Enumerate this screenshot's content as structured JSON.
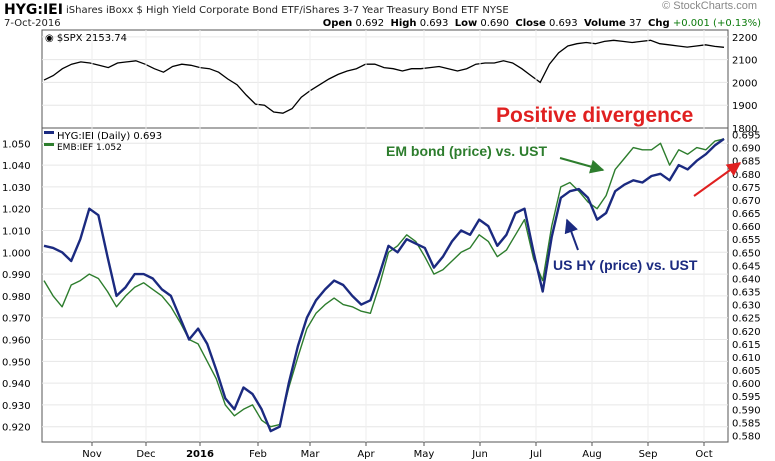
{
  "header": {
    "symbol": "HYG:IEI",
    "name": "iShares iBoxx $ High Yield Corporate Bond ETF/iShares 3-7 Year Treasury Bond ETF  NYSE",
    "date": "7-Oct-2016",
    "watermark": "© StockCharts.com",
    "ohlc": {
      "open_label": "Open",
      "open": "0.692",
      "high_label": "High",
      "high": "0.693",
      "low_label": "Low",
      "low": "0.690",
      "close_label": "Close",
      "close": "0.693",
      "volume_label": "Volume",
      "volume": "37",
      "chg_label": "Chg",
      "chg": "+0.001 (+0.13%)"
    }
  },
  "chart_data": [
    {
      "type": "line",
      "legend": "$SPX 2153.74",
      "series": [
        {
          "name": "$SPX",
          "last": 2153.74,
          "values": [
            2010,
            2030,
            2060,
            2080,
            2090,
            2085,
            2075,
            2065,
            2085,
            2090,
            2095,
            2080,
            2060,
            2045,
            2070,
            2080,
            2075,
            2065,
            2060,
            2045,
            2015,
            1990,
            1945,
            1905,
            1900,
            1870,
            1865,
            1885,
            1935,
            1965,
            1990,
            2015,
            2035,
            2050,
            2060,
            2080,
            2080,
            2065,
            2060,
            2050,
            2060,
            2060,
            2065,
            2070,
            2060,
            2050,
            2060,
            2080,
            2085,
            2085,
            2095,
            2085,
            2060,
            2030,
            2000,
            2080,
            2130,
            2160,
            2170,
            2175,
            2170,
            2180,
            2185,
            2180,
            2175,
            2180,
            2185,
            2170,
            2165,
            2160,
            2155,
            2160,
            2165,
            2158,
            2154
          ]
        }
      ],
      "y_ticks": [
        1800,
        1900,
        2000,
        2100,
        2200
      ],
      "ylim": [
        1800,
        2230
      ]
    },
    {
      "type": "line",
      "series": [
        {
          "name": "HYG:IEI (Daily)",
          "last": 0.693,
          "color": "#1b2a80",
          "values": [
            1.003,
            1.002,
            1.0,
            0.996,
            1.006,
            1.02,
            1.017,
            0.998,
            0.98,
            0.984,
            0.99,
            0.99,
            0.988,
            0.983,
            0.98,
            0.97,
            0.96,
            0.965,
            0.958,
            0.946,
            0.933,
            0.928,
            0.938,
            0.935,
            0.928,
            0.918,
            0.92,
            0.94,
            0.957,
            0.97,
            0.978,
            0.983,
            0.987,
            0.985,
            0.98,
            0.976,
            0.978,
            0.99,
            1.003,
            1.0,
            1.006,
            1.004,
            1.002,
            0.993,
            0.998,
            1.005,
            1.01,
            1.008,
            1.015,
            1.012,
            1.003,
            1.008,
            1.018,
            1.02,
            1.0,
            0.982,
            1.007,
            1.025,
            1.028,
            1.029,
            1.025,
            1.015,
            1.018,
            1.028,
            1.031,
            1.033,
            1.032,
            1.035,
            1.036,
            1.033,
            1.04,
            1.038,
            1.042,
            1.045,
            1.049,
            1.052
          ]
        },
        {
          "name": "EMB:IEF",
          "last": 1.052,
          "color": "#2d7d2d",
          "values": [
            0.987,
            0.98,
            0.975,
            0.985,
            0.987,
            0.99,
            0.988,
            0.982,
            0.975,
            0.98,
            0.984,
            0.986,
            0.983,
            0.98,
            0.975,
            0.968,
            0.96,
            0.958,
            0.95,
            0.942,
            0.93,
            0.925,
            0.928,
            0.93,
            0.923,
            0.92,
            0.921,
            0.938,
            0.952,
            0.965,
            0.972,
            0.976,
            0.979,
            0.976,
            0.975,
            0.973,
            0.972,
            0.985,
            1.0,
            1.003,
            1.008,
            1.005,
            0.998,
            0.99,
            0.992,
            0.996,
            1.0,
            1.002,
            1.008,
            1.005,
            0.998,
            1.001,
            1.008,
            1.015,
            0.997,
            0.987,
            1.012,
            1.03,
            1.032,
            1.028,
            1.023,
            1.02,
            1.026,
            1.038,
            1.043,
            1.048,
            1.047,
            1.047,
            1.05,
            1.04,
            1.047,
            1.045,
            1.048,
            1.047,
            1.051,
            1.052
          ]
        }
      ],
      "y_ticks_left": [
        "1.050",
        "1.040",
        "1.030",
        "1.020",
        "1.010",
        "1.000",
        "0.990",
        "0.980",
        "0.970",
        "0.960",
        "0.950",
        "0.940",
        "0.930",
        "0.920"
      ],
      "y_ticks_right": [
        "0.695",
        "0.690",
        "0.685",
        "0.680",
        "0.675",
        "0.670",
        "0.665",
        "0.660",
        "0.655",
        "0.650",
        "0.645",
        "0.640",
        "0.635",
        "0.630",
        "0.625",
        "0.620",
        "0.615",
        "0.610",
        "0.605",
        "0.600",
        "0.595",
        "0.590",
        "0.585",
        "0.580"
      ],
      "x_ticks": [
        "Nov",
        "Dec",
        "2016",
        "Feb",
        "Mar",
        "Apr",
        "May",
        "Jun",
        "Jul",
        "Aug",
        "Sep",
        "Oct"
      ],
      "ylim": [
        0.913,
        1.057
      ],
      "annotations": {
        "title": "Positive divergence",
        "em_label": "EM bond (price) vs. UST",
        "hy_label": "US HY (price) vs. UST"
      },
      "colors": {
        "hy": "#1b2a80",
        "em": "#2d7d2d",
        "annotation_red": "#e02020",
        "annotation_green": "#2d7d2d",
        "annotation_blue": "#1b2a80"
      }
    }
  ]
}
